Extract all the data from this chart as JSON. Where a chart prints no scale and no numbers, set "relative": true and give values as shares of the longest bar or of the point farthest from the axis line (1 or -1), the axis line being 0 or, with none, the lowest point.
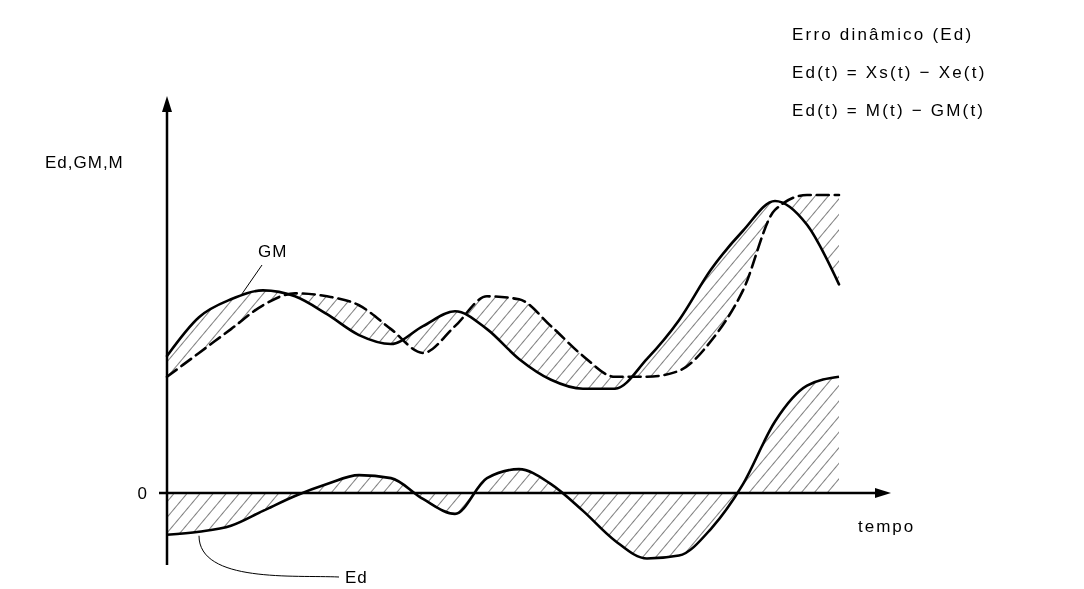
{
  "chart_data": {
    "type": "line",
    "relative": true,
    "ylabel": "Ed,GM,M",
    "xlabel": "tempo",
    "marker": "none",
    "annotations": [
      "Erro dinâmico (Ed)",
      "Ed(t) = Xs(t) − Xe(t)",
      "Ed(t) = M(t) − GM(t)",
      "0"
    ],
    "categories": [
      null,
      null,
      null,
      null,
      null,
      null,
      null,
      null,
      null,
      null,
      null,
      null,
      null,
      null,
      null,
      null,
      null,
      null,
      null,
      null,
      null,
      null
    ],
    "series": [
      {
        "name": "GM",
        "color": "#000000",
        "line_style": "solid",
        "values": [
          0.46,
          0.59,
          0.65,
          0.68,
          0.66,
          0.6,
          0.53,
          0.5,
          0.56,
          0.61,
          0.55,
          0.45,
          0.38,
          0.35,
          0.35,
          0.45,
          0.58,
          0.75,
          0.88,
          0.98,
          0.9,
          0.7
        ]
      },
      {
        "color": "#000000",
        "line_style": "dashed",
        "values": [
          0.39,
          0.47,
          0.55,
          0.63,
          0.67,
          0.66,
          0.63,
          0.55,
          0.47,
          0.56,
          0.66,
          0.65,
          0.56,
          0.46,
          0.39,
          0.39,
          0.41,
          0.51,
          0.68,
          0.95,
          1,
          1
        ]
      },
      {
        "name": "Ed",
        "type": "area",
        "color": "#000000",
        "line_style": "solid",
        "values": [
          -0.14,
          -0.13,
          -0.11,
          -0.06,
          -0.01,
          0.03,
          0.06,
          0.05,
          -0.02,
          -0.07,
          0.05,
          0.08,
          0.03,
          -0.06,
          -0.16,
          -0.22,
          -0.21,
          -0.12,
          0.03,
          0.24,
          0.36,
          0.39
        ]
      }
    ]
  }
}
